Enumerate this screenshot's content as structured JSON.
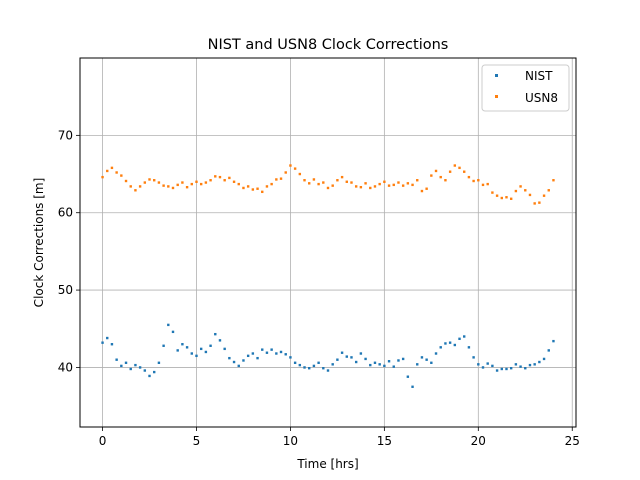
{
  "chart_data": {
    "type": "scatter",
    "title": "NIST and USN8 Clock Corrections",
    "xlabel": "Time [hrs]",
    "ylabel": "Clock Corrections [m]",
    "xlim": [
      -1.2,
      25.2
    ],
    "ylim": [
      32.3,
      80.0
    ],
    "xticks": [
      0,
      5,
      10,
      15,
      20,
      25
    ],
    "yticks": [
      40,
      50,
      60,
      70
    ],
    "grid": true,
    "legend_position": "top-right",
    "series": [
      {
        "name": "NIST",
        "color": "#1f77b4",
        "x": [
          0.0,
          0.25,
          0.5,
          0.75,
          1.0,
          1.25,
          1.5,
          1.75,
          2.0,
          2.25,
          2.5,
          2.75,
          3.0,
          3.25,
          3.5,
          3.75,
          4.0,
          4.25,
          4.5,
          4.75,
          5.0,
          5.25,
          5.5,
          5.75,
          6.0,
          6.25,
          6.5,
          6.75,
          7.0,
          7.25,
          7.5,
          7.75,
          8.0,
          8.25,
          8.5,
          8.75,
          9.0,
          9.25,
          9.5,
          9.75,
          10.0,
          10.25,
          10.5,
          10.75,
          11.0,
          11.25,
          11.5,
          11.75,
          12.0,
          12.25,
          12.5,
          12.75,
          13.0,
          13.25,
          13.5,
          13.75,
          14.0,
          14.25,
          14.5,
          14.75,
          15.0,
          15.25,
          15.5,
          15.75,
          16.0,
          16.25,
          16.5,
          16.75,
          17.0,
          17.25,
          17.5,
          17.75,
          18.0,
          18.25,
          18.5,
          18.75,
          19.0,
          19.25,
          19.5,
          19.75,
          20.0,
          20.25,
          20.5,
          20.75,
          21.0,
          21.25,
          21.5,
          21.75,
          22.0,
          22.25,
          22.5,
          22.75,
          23.0,
          23.25,
          23.5,
          23.75,
          24.0
        ],
        "y": [
          43.2,
          43.8,
          43.0,
          41.0,
          40.2,
          40.6,
          39.8,
          40.3,
          40.0,
          39.6,
          38.9,
          39.4,
          40.6,
          42.8,
          45.5,
          44.6,
          42.2,
          43.0,
          42.6,
          41.8,
          41.5,
          42.4,
          42.0,
          42.8,
          44.3,
          43.5,
          42.4,
          41.2,
          40.7,
          40.2,
          40.9,
          41.5,
          41.8,
          41.2,
          42.3,
          41.9,
          42.3,
          41.8,
          42.0,
          41.7,
          41.3,
          40.6,
          40.3,
          40.0,
          39.9,
          40.2,
          40.6,
          39.9,
          39.6,
          40.4,
          41.0,
          41.9,
          41.4,
          41.3,
          40.7,
          41.8,
          41.1,
          40.3,
          40.6,
          40.4,
          40.2,
          40.8,
          40.1,
          40.9,
          41.1,
          38.8,
          37.5,
          40.4,
          41.3,
          41.0,
          40.6,
          41.8,
          42.6,
          43.1,
          43.2,
          42.9,
          43.7,
          44.0,
          42.6,
          41.3,
          40.4,
          40.0,
          40.5,
          40.2,
          39.6,
          39.8,
          39.8,
          39.9,
          40.4,
          40.1,
          39.9,
          40.3,
          40.4,
          40.7,
          41.1,
          42.2,
          43.4
        ]
      },
      {
        "name": "USN8",
        "color": "#ff7f0e",
        "x": [
          0.0,
          0.25,
          0.5,
          0.75,
          1.0,
          1.25,
          1.5,
          1.75,
          2.0,
          2.25,
          2.5,
          2.75,
          3.0,
          3.25,
          3.5,
          3.75,
          4.0,
          4.25,
          4.5,
          4.75,
          5.0,
          5.25,
          5.5,
          5.75,
          6.0,
          6.25,
          6.5,
          6.75,
          7.0,
          7.25,
          7.5,
          7.75,
          8.0,
          8.25,
          8.5,
          8.75,
          9.0,
          9.25,
          9.5,
          9.75,
          10.0,
          10.25,
          10.5,
          10.75,
          11.0,
          11.25,
          11.5,
          11.75,
          12.0,
          12.25,
          12.5,
          12.75,
          13.0,
          13.25,
          13.5,
          13.75,
          14.0,
          14.25,
          14.5,
          14.75,
          15.0,
          15.25,
          15.5,
          15.75,
          16.0,
          16.25,
          16.5,
          16.75,
          17.0,
          17.25,
          17.5,
          17.75,
          18.0,
          18.25,
          18.5,
          18.75,
          19.0,
          19.25,
          19.5,
          19.75,
          20.0,
          20.25,
          20.5,
          20.75,
          21.0,
          21.25,
          21.5,
          21.75,
          22.0,
          22.25,
          22.5,
          22.75,
          23.0,
          23.25,
          23.5,
          23.75,
          24.0
        ],
        "y": [
          64.6,
          65.4,
          65.8,
          65.2,
          64.8,
          64.1,
          63.4,
          62.9,
          63.4,
          63.9,
          64.3,
          64.2,
          63.9,
          63.5,
          63.4,
          63.2,
          63.6,
          63.9,
          63.3,
          63.7,
          64.0,
          63.7,
          63.9,
          64.2,
          64.7,
          64.6,
          64.2,
          64.5,
          64.0,
          63.7,
          63.2,
          63.4,
          63.0,
          63.1,
          62.7,
          63.4,
          63.7,
          64.3,
          64.4,
          65.2,
          66.1,
          65.7,
          65.0,
          64.2,
          63.8,
          64.3,
          63.7,
          63.9,
          63.2,
          63.5,
          64.2,
          64.6,
          64.0,
          63.9,
          63.4,
          63.3,
          63.8,
          63.2,
          63.4,
          63.7,
          64.0,
          63.5,
          63.6,
          63.9,
          63.5,
          63.8,
          63.6,
          64.2,
          62.8,
          63.1,
          64.8,
          65.4,
          64.6,
          64.2,
          65.3,
          66.1,
          65.8,
          65.3,
          64.6,
          64.1,
          64.2,
          63.6,
          63.7,
          62.6,
          62.2,
          61.9,
          62.0,
          61.8,
          62.8,
          63.4,
          62.9,
          62.3,
          61.2,
          61.3,
          62.2,
          62.9,
          64.2
        ]
      }
    ]
  }
}
